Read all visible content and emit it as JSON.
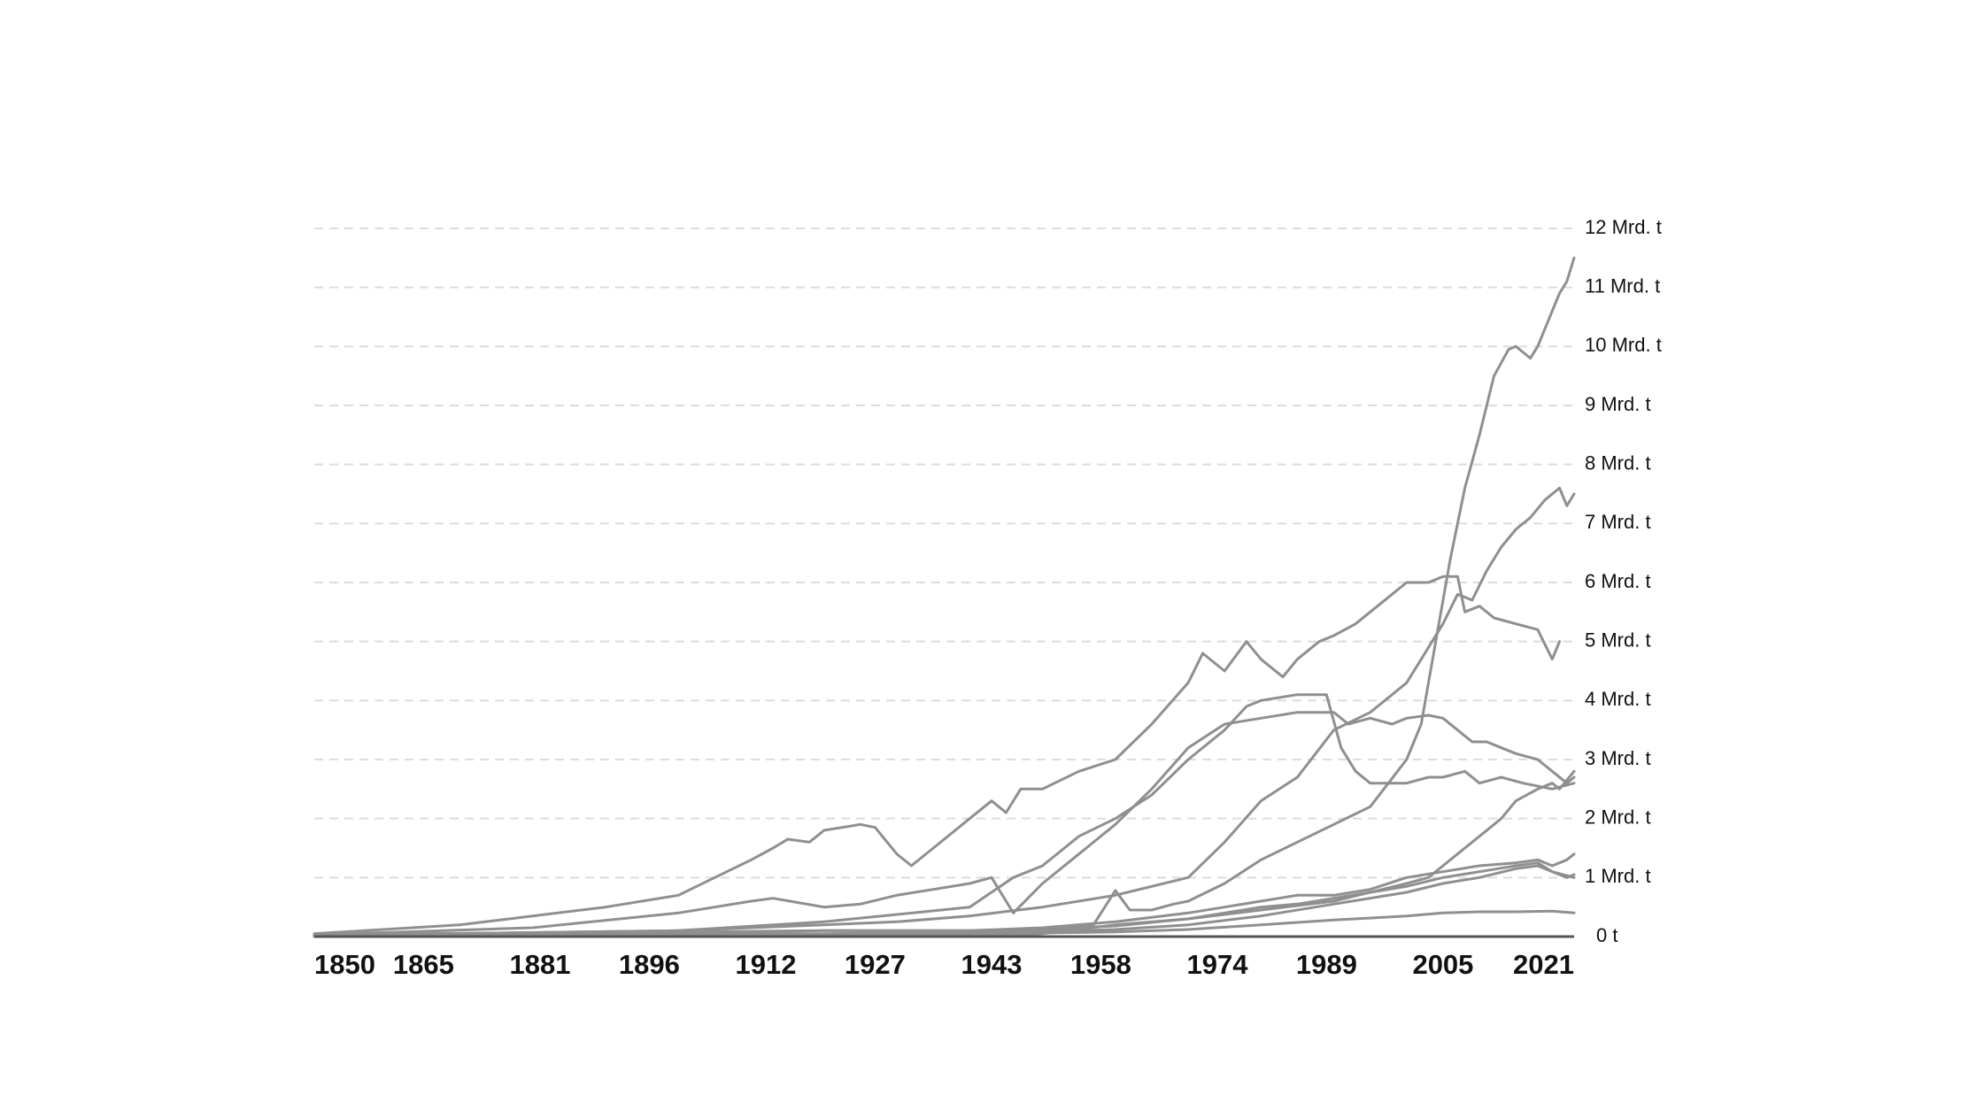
{
  "chart_data": {
    "type": "line",
    "title": "",
    "xlabel": "",
    "ylabel": "",
    "x_ticks": [
      "1850",
      "1865",
      "1881",
      "1896",
      "1912",
      "1927",
      "1943",
      "1958",
      "1974",
      "1989",
      "2005",
      "2021"
    ],
    "y_ticks": [
      "0 t",
      "1 Mrd. t",
      "2 Mrd. t",
      "3 Mrd. t",
      "4 Mrd. t",
      "5 Mrd. t",
      "6 Mrd. t",
      "7 Mrd. t",
      "8 Mrd. t",
      "9 Mrd. t",
      "10 Mrd. t",
      "11 Mrd. t",
      "12 Mrd. t"
    ],
    "unit": "Mrd. t",
    "xlim": [
      1850,
      2023
    ],
    "ylim": [
      0,
      12
    ],
    "grid": true,
    "legend": "none",
    "line_color": "#8f8f8f",
    "series": [
      {
        "values": [
          [
            1850,
            0.04
          ],
          [
            1900,
            0.08
          ],
          [
            1920,
            0.1
          ],
          [
            1940,
            0.1
          ],
          [
            1950,
            0.08
          ],
          [
            1957,
            0.2
          ],
          [
            1960,
            0.78
          ],
          [
            1962,
            0.45
          ],
          [
            1965,
            0.45
          ],
          [
            1968,
            0.55
          ],
          [
            1970,
            0.6
          ],
          [
            1975,
            0.9
          ],
          [
            1980,
            1.3
          ],
          [
            1985,
            1.6
          ],
          [
            1990,
            1.9
          ],
          [
            1995,
            2.2
          ],
          [
            2000,
            3.0
          ],
          [
            2002,
            3.6
          ],
          [
            2004,
            5.0
          ],
          [
            2006,
            6.4
          ],
          [
            2008,
            7.6
          ],
          [
            2010,
            8.5
          ],
          [
            2012,
            9.5
          ],
          [
            2014,
            9.95
          ],
          [
            2015,
            10.0
          ],
          [
            2016,
            9.9
          ],
          [
            2017,
            9.8
          ],
          [
            2018,
            10.0
          ],
          [
            2019,
            10.3
          ],
          [
            2020,
            10.6
          ],
          [
            2021,
            10.9
          ],
          [
            2022,
            11.1
          ],
          [
            2023,
            11.5
          ]
        ]
      },
      {
        "values": [
          [
            1850,
            0.05
          ],
          [
            1870,
            0.2
          ],
          [
            1880,
            0.35
          ],
          [
            1890,
            0.5
          ],
          [
            1900,
            0.7
          ],
          [
            1905,
            1.0
          ],
          [
            1910,
            1.3
          ],
          [
            1913,
            1.5
          ],
          [
            1915,
            1.65
          ],
          [
            1918,
            1.6
          ],
          [
            1920,
            1.8
          ],
          [
            1925,
            1.9
          ],
          [
            1927,
            1.85
          ],
          [
            1930,
            1.4
          ],
          [
            1932,
            1.2
          ],
          [
            1935,
            1.5
          ],
          [
            1940,
            2.0
          ],
          [
            1943,
            2.3
          ],
          [
            1945,
            2.1
          ],
          [
            1947,
            2.5
          ],
          [
            1950,
            2.5
          ],
          [
            1955,
            2.8
          ],
          [
            1960,
            3.0
          ],
          [
            1965,
            3.6
          ],
          [
            1970,
            4.3
          ],
          [
            1972,
            4.8
          ],
          [
            1975,
            4.5
          ],
          [
            1978,
            5.0
          ],
          [
            1980,
            4.7
          ],
          [
            1983,
            4.4
          ],
          [
            1985,
            4.7
          ],
          [
            1988,
            5.0
          ],
          [
            1990,
            5.1
          ],
          [
            1993,
            5.3
          ],
          [
            1995,
            5.5
          ],
          [
            1998,
            5.8
          ],
          [
            2000,
            6.0
          ],
          [
            2003,
            6.0
          ],
          [
            2005,
            6.1
          ],
          [
            2007,
            6.1
          ],
          [
            2008,
            5.5
          ],
          [
            2010,
            5.6
          ],
          [
            2012,
            5.4
          ],
          [
            2015,
            5.3
          ],
          [
            2018,
            5.2
          ],
          [
            2020,
            4.7
          ],
          [
            2021,
            5.0
          ]
        ]
      },
      {
        "values": [
          [
            1850,
            0.02
          ],
          [
            1900,
            0.1
          ],
          [
            1920,
            0.25
          ],
          [
            1940,
            0.5
          ],
          [
            1946,
            1.0
          ],
          [
            1950,
            1.2
          ],
          [
            1955,
            1.7
          ],
          [
            1960,
            2.0
          ],
          [
            1965,
            2.4
          ],
          [
            1970,
            3.0
          ],
          [
            1975,
            3.5
          ],
          [
            1978,
            3.9
          ],
          [
            1980,
            4.0
          ],
          [
            1985,
            4.1
          ],
          [
            1989,
            4.1
          ],
          [
            1991,
            3.2
          ],
          [
            1993,
            2.8
          ],
          [
            1995,
            2.6
          ],
          [
            1998,
            2.6
          ],
          [
            2000,
            2.6
          ],
          [
            2003,
            2.7
          ],
          [
            2005,
            2.7
          ],
          [
            2008,
            2.8
          ],
          [
            2010,
            2.6
          ],
          [
            2013,
            2.7
          ],
          [
            2016,
            2.6
          ],
          [
            2020,
            2.5
          ],
          [
            2023,
            2.6
          ]
        ]
      },
      {
        "values": [
          [
            1850,
            0.0
          ],
          [
            1940,
            0.0
          ],
          [
            1950,
            0.05
          ],
          [
            1960,
            0.2
          ],
          [
            1970,
            0.3
          ],
          [
            1980,
            0.45
          ],
          [
            1990,
            0.6
          ],
          [
            2000,
            0.9
          ],
          [
            2003,
            1.0
          ],
          [
            2005,
            1.2
          ],
          [
            2008,
            1.5
          ],
          [
            2010,
            1.7
          ],
          [
            2013,
            2.0
          ],
          [
            2015,
            2.3
          ],
          [
            2018,
            2.5
          ],
          [
            2020,
            2.6
          ],
          [
            2021,
            2.5
          ],
          [
            2023,
            2.8
          ]
        ]
      },
      {
        "values": [
          [
            1850,
            0.03
          ],
          [
            1880,
            0.15
          ],
          [
            1900,
            0.4
          ],
          [
            1910,
            0.6
          ],
          [
            1913,
            0.65
          ],
          [
            1920,
            0.5
          ],
          [
            1925,
            0.55
          ],
          [
            1930,
            0.7
          ],
          [
            1935,
            0.8
          ],
          [
            1940,
            0.9
          ],
          [
            1943,
            1.0
          ],
          [
            1946,
            0.4
          ],
          [
            1950,
            0.9
          ],
          [
            1955,
            1.4
          ],
          [
            1960,
            1.9
          ],
          [
            1965,
            2.5
          ],
          [
            1970,
            3.2
          ],
          [
            1975,
            3.6
          ],
          [
            1980,
            3.7
          ],
          [
            1985,
            3.8
          ],
          [
            1990,
            3.8
          ],
          [
            1992,
            3.6
          ],
          [
            1995,
            3.7
          ],
          [
            1998,
            3.6
          ],
          [
            2000,
            3.7
          ],
          [
            2003,
            3.75
          ],
          [
            2005,
            3.7
          ],
          [
            2007,
            3.5
          ],
          [
            2009,
            3.3
          ],
          [
            2011,
            3.3
          ],
          [
            2013,
            3.2
          ],
          [
            2015,
            3.1
          ],
          [
            2018,
            3.0
          ],
          [
            2020,
            2.8
          ],
          [
            2022,
            2.6
          ],
          [
            2023,
            2.7
          ]
        ]
      },
      {
        "values": [
          [
            1850,
            0.02
          ],
          [
            1900,
            0.1
          ],
          [
            1920,
            0.2
          ],
          [
            1930,
            0.25
          ],
          [
            1940,
            0.35
          ],
          [
            1950,
            0.5
          ],
          [
            1960,
            0.7
          ],
          [
            1970,
            1.0
          ],
          [
            1975,
            1.6
          ],
          [
            1980,
            2.3
          ],
          [
            1985,
            2.7
          ],
          [
            1990,
            3.5
          ],
          [
            1995,
            3.8
          ],
          [
            1998,
            4.1
          ],
          [
            2000,
            4.3
          ],
          [
            2002,
            4.7
          ],
          [
            2005,
            5.3
          ],
          [
            2007,
            5.8
          ],
          [
            2009,
            5.7
          ],
          [
            2011,
            6.2
          ],
          [
            2013,
            6.6
          ],
          [
            2015,
            6.9
          ],
          [
            2017,
            7.1
          ],
          [
            2019,
            7.4
          ],
          [
            2020,
            7.5
          ],
          [
            2021,
            7.6
          ],
          [
            2022,
            7.3
          ],
          [
            2023,
            7.5
          ]
        ]
      },
      {
        "values": [
          [
            1850,
            0.02
          ],
          [
            1900,
            0.05
          ],
          [
            1920,
            0.1
          ],
          [
            1940,
            0.1
          ],
          [
            1950,
            0.15
          ],
          [
            1960,
            0.25
          ],
          [
            1970,
            0.4
          ],
          [
            1975,
            0.5
          ],
          [
            1980,
            0.6
          ],
          [
            1985,
            0.7
          ],
          [
            1990,
            0.7
          ],
          [
            1995,
            0.8
          ],
          [
            2000,
            1.0
          ],
          [
            2005,
            1.1
          ],
          [
            2010,
            1.2
          ],
          [
            2015,
            1.25
          ],
          [
            2018,
            1.3
          ],
          [
            2020,
            1.2
          ],
          [
            2022,
            1.3
          ],
          [
            2023,
            1.4
          ]
        ]
      },
      {
        "values": [
          [
            1850,
            0.01
          ],
          [
            1900,
            0.03
          ],
          [
            1920,
            0.05
          ],
          [
            1940,
            0.08
          ],
          [
            1950,
            0.12
          ],
          [
            1960,
            0.18
          ],
          [
            1970,
            0.3
          ],
          [
            1975,
            0.4
          ],
          [
            1980,
            0.5
          ],
          [
            1985,
            0.55
          ],
          [
            1990,
            0.65
          ],
          [
            1995,
            0.75
          ],
          [
            2000,
            0.85
          ],
          [
            2005,
            1.0
          ],
          [
            2010,
            1.1
          ],
          [
            2015,
            1.2
          ],
          [
            2018,
            1.25
          ],
          [
            2020,
            1.1
          ],
          [
            2022,
            1.0
          ],
          [
            2023,
            1.05
          ]
        ]
      },
      {
        "values": [
          [
            1850,
            0.01
          ],
          [
            1900,
            0.02
          ],
          [
            1920,
            0.03
          ],
          [
            1940,
            0.05
          ],
          [
            1950,
            0.08
          ],
          [
            1960,
            0.12
          ],
          [
            1970,
            0.2
          ],
          [
            1980,
            0.35
          ],
          [
            1990,
            0.55
          ],
          [
            2000,
            0.75
          ],
          [
            2005,
            0.9
          ],
          [
            2010,
            1.0
          ],
          [
            2015,
            1.15
          ],
          [
            2018,
            1.2
          ],
          [
            2020,
            1.1
          ],
          [
            2023,
            1.0
          ]
        ]
      },
      {
        "values": [
          [
            1850,
            0.01
          ],
          [
            1900,
            0.02
          ],
          [
            1920,
            0.03
          ],
          [
            1940,
            0.04
          ],
          [
            1950,
            0.06
          ],
          [
            1960,
            0.08
          ],
          [
            1970,
            0.12
          ],
          [
            1980,
            0.2
          ],
          [
            1990,
            0.28
          ],
          [
            2000,
            0.35
          ],
          [
            2005,
            0.4
          ],
          [
            2010,
            0.42
          ],
          [
            2015,
            0.42
          ],
          [
            2020,
            0.43
          ],
          [
            2023,
            0.4
          ]
        ]
      }
    ]
  }
}
